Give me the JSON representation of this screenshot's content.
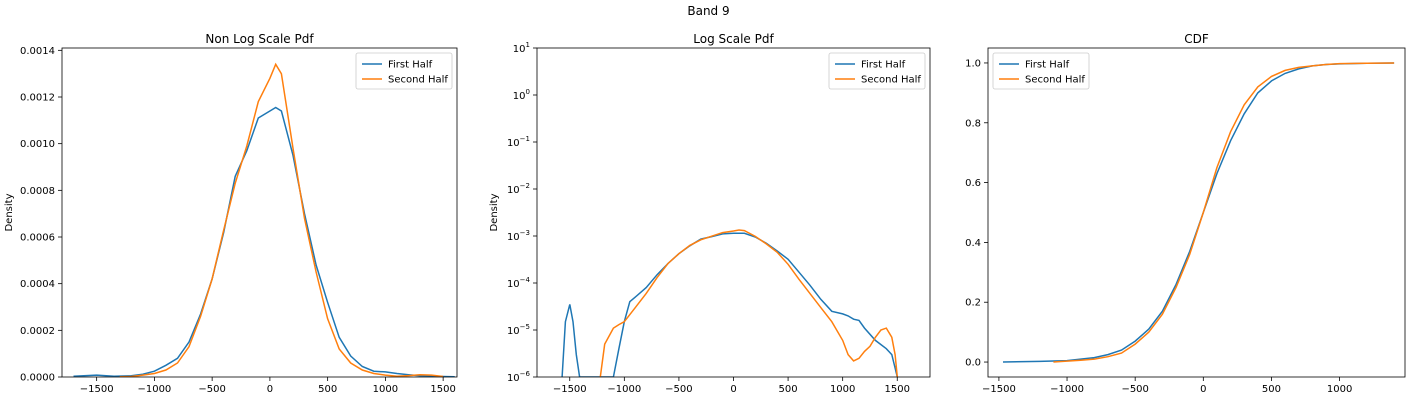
{
  "suptitle": "Band 9",
  "chart_data": [
    {
      "type": "line",
      "title": "Non Log Scale Pdf",
      "xlabel": "",
      "ylabel": "Density",
      "xlim": [
        -1800,
        1620
      ],
      "ylim": [
        0,
        0.00141
      ],
      "xticks": [
        -1500,
        -1000,
        -500,
        0,
        500,
        1000,
        1500
      ],
      "xtick_labels": [
        "−1500",
        "−1000",
        "−500",
        "0",
        "500",
        "1000",
        "1500"
      ],
      "yticks": [
        0,
        0.0002,
        0.0004,
        0.0006,
        0.0008,
        0.001,
        0.0012,
        0.0014
      ],
      "ytick_labels": [
        "0.0000",
        "0.0002",
        "0.0004",
        "0.0006",
        "0.0008",
        "0.0010",
        "0.0012",
        "0.0014"
      ],
      "legend_position": "top-right",
      "series": [
        {
          "name": "First Half",
          "color": "#1f77b4",
          "x": [
            -1700,
            -1500,
            -1350,
            -1200,
            -1100,
            -1000,
            -900,
            -800,
            -700,
            -600,
            -500,
            -400,
            -300,
            -200,
            -100,
            0,
            50,
            100,
            200,
            300,
            400,
            500,
            600,
            700,
            800,
            900,
            1000,
            1100,
            1200,
            1300,
            1400,
            1500,
            1600
          ],
          "y": [
            3e-06,
            8e-06,
            3e-06,
            5e-06,
            1.2e-05,
            2.5e-05,
            5e-05,
            8e-05,
            0.00015,
            0.00027,
            0.00042,
            0.00062,
            0.00086,
            0.00097,
            0.00111,
            0.00114,
            0.001155,
            0.00114,
            0.00095,
            0.0007,
            0.00048,
            0.00032,
            0.00017,
            9e-05,
            4.5e-05,
            2.5e-05,
            2.2e-05,
            1.5e-05,
            1e-05,
            5e-06,
            3e-06,
            2e-06,
            1e-06
          ]
        },
        {
          "name": "Second Half",
          "color": "#ff7f0e",
          "x": [
            -1300,
            -1200,
            -1100,
            -1000,
            -900,
            -800,
            -700,
            -600,
            -500,
            -400,
            -300,
            -200,
            -100,
            0,
            50,
            100,
            200,
            300,
            400,
            500,
            600,
            700,
            800,
            900,
            1000,
            1100,
            1200,
            1300,
            1400,
            1500
          ],
          "y": [
            1e-06,
            2e-06,
            8e-06,
            1.5e-05,
            3e-05,
            6e-05,
            0.00013,
            0.00026,
            0.00042,
            0.00063,
            0.00083,
            0.00099,
            0.00118,
            0.00128,
            0.00134,
            0.0013,
            0.00098,
            0.00068,
            0.00045,
            0.00025,
            0.00012,
            6e-05,
            3e-05,
            1.5e-05,
            8e-06,
            3e-06,
            6e-06,
            1e-05,
            8e-06,
            2e-06
          ]
        }
      ]
    },
    {
      "type": "line",
      "title": "Log Scale Pdf",
      "xlabel": "",
      "ylabel": "Density",
      "xlim": [
        -1800,
        1800
      ],
      "ylog": true,
      "ylim": [
        1e-06,
        10
      ],
      "xticks": [
        -1500,
        -1000,
        -500,
        0,
        500,
        1000,
        1500
      ],
      "xtick_labels": [
        "−1500",
        "−1000",
        "−500",
        "0",
        "500",
        "1000",
        "1500"
      ],
      "yticks": [
        1e-06,
        1e-05,
        0.0001,
        0.001,
        0.01,
        0.1,
        1,
        10
      ],
      "ytick_bases": [
        "10",
        "10",
        "10",
        "10",
        "10",
        "10",
        "10",
        "10"
      ],
      "ytick_exponents": [
        "−6",
        "−5",
        "−4",
        "−3",
        "−2",
        "−1",
        "0",
        "1"
      ],
      "legend_position": "top-right",
      "series": [
        {
          "name": "First Half",
          "color": "#1f77b4",
          "x": [
            -1570,
            -1540,
            -1500,
            -1470,
            -1440,
            -1410,
            -1100,
            -1050,
            -1000,
            -950,
            -900,
            -800,
            -700,
            -600,
            -500,
            -400,
            -300,
            -200,
            -100,
            0,
            100,
            200,
            300,
            400,
            500,
            600,
            700,
            800,
            900,
            1000,
            1050,
            1100,
            1150,
            1200,
            1300,
            1400,
            1450,
            1500
          ],
          "y": [
            1e-06,
            1.5e-05,
            3.5e-05,
            1.5e-05,
            3e-06,
            1e-06,
            1e-06,
            4e-06,
            1.5e-05,
            4e-05,
            5e-05,
            8e-05,
            0.00015,
            0.00026,
            0.00042,
            0.00062,
            0.00086,
            0.00097,
            0.00111,
            0.00114,
            0.00114,
            0.00095,
            0.0007,
            0.00048,
            0.00032,
            0.00017,
            9e-05,
            4.5e-05,
            2.5e-05,
            2.2e-05,
            2e-05,
            1.7e-05,
            1.6e-05,
            1.1e-05,
            6e-06,
            4e-06,
            3e-06,
            1e-06
          ]
        },
        {
          "name": "Second Half",
          "color": "#ff7f0e",
          "x": [
            -1220,
            -1180,
            -1100,
            -1050,
            -1000,
            -900,
            -800,
            -700,
            -600,
            -500,
            -400,
            -300,
            -200,
            -100,
            0,
            50,
            100,
            200,
            300,
            400,
            500,
            600,
            700,
            800,
            900,
            1000,
            1050,
            1100,
            1150,
            1200,
            1250,
            1300,
            1350,
            1400,
            1450,
            1480,
            1500
          ],
          "y": [
            1e-06,
            5e-06,
            1.1e-05,
            1.3e-05,
            1.5e-05,
            3e-05,
            6e-05,
            0.00013,
            0.00026,
            0.00042,
            0.00063,
            0.00083,
            0.00099,
            0.00118,
            0.00128,
            0.00134,
            0.0013,
            0.00098,
            0.00068,
            0.00045,
            0.00025,
            0.00012,
            6e-05,
            3e-05,
            1.5e-05,
            6e-06,
            3e-06,
            2.2e-06,
            2.5e-06,
            3.5e-06,
            4.5e-06,
            7e-06,
            1e-05,
            1.1e-05,
            7e-06,
            3e-06,
            1e-06
          ]
        }
      ]
    },
    {
      "type": "line",
      "title": "CDF",
      "xlabel": "",
      "ylabel": "",
      "xlim": [
        -1580,
        1480
      ],
      "ylim": [
        -0.05,
        1.05
      ],
      "xticks": [
        -1500,
        -1000,
        -500,
        0,
        500,
        1000
      ],
      "xtick_labels": [
        "−1500",
        "−1000",
        "−500",
        "0",
        "500",
        "1000"
      ],
      "yticks": [
        0,
        0.2,
        0.4,
        0.6,
        0.8,
        1.0
      ],
      "ytick_labels": [
        "0.0",
        "0.2",
        "0.4",
        "0.6",
        "0.8",
        "1.0"
      ],
      "legend_position": "top-left",
      "series": [
        {
          "name": "First Half",
          "color": "#1f77b4",
          "x": [
            -1470,
            -1200,
            -1000,
            -900,
            -800,
            -700,
            -600,
            -500,
            -400,
            -300,
            -200,
            -100,
            0,
            100,
            200,
            300,
            400,
            500,
            600,
            700,
            800,
            900,
            1000,
            1200,
            1400
          ],
          "y": [
            0.0,
            0.002,
            0.005,
            0.01,
            0.015,
            0.025,
            0.04,
            0.07,
            0.11,
            0.17,
            0.26,
            0.37,
            0.5,
            0.63,
            0.74,
            0.83,
            0.9,
            0.94,
            0.965,
            0.98,
            0.99,
            0.995,
            0.997,
            0.999,
            1.0
          ]
        },
        {
          "name": "Second Half",
          "color": "#ff7f0e",
          "x": [
            -1100,
            -1000,
            -900,
            -800,
            -700,
            -600,
            -500,
            -400,
            -300,
            -200,
            -100,
            0,
            100,
            200,
            300,
            400,
            500,
            600,
            700,
            800,
            900,
            1000,
            1200,
            1400
          ],
          "y": [
            0.0,
            0.003,
            0.006,
            0.01,
            0.018,
            0.03,
            0.06,
            0.1,
            0.16,
            0.25,
            0.36,
            0.5,
            0.65,
            0.77,
            0.86,
            0.92,
            0.955,
            0.975,
            0.985,
            0.99,
            0.995,
            0.998,
            0.999,
            1.0
          ]
        }
      ]
    }
  ]
}
